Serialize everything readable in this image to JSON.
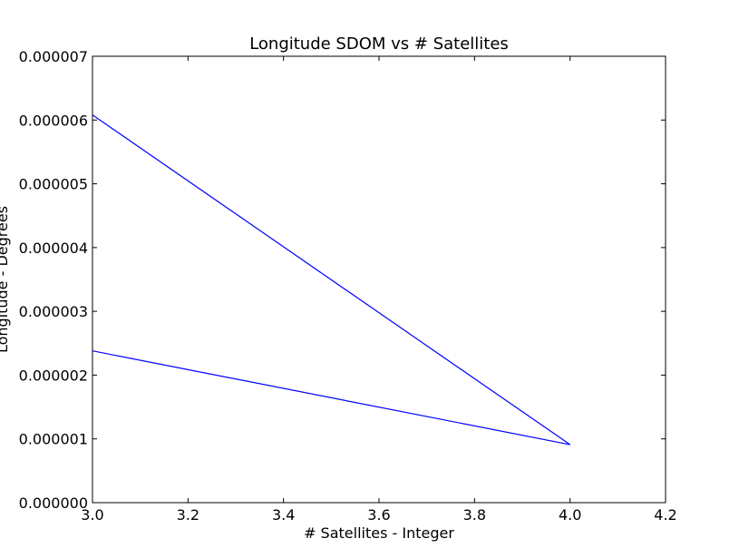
{
  "chart_data": {
    "type": "line",
    "title": "Longitude SDOM vs # Satellites",
    "xlabel": "# Satellites - Integer",
    "ylabel": "Longitude - Degrees",
    "xlim": [
      3.0,
      4.2
    ],
    "ylim": [
      0.0,
      7e-06
    ],
    "x_ticks": [
      "3.0",
      "3.2",
      "3.4",
      "3.6",
      "3.8",
      "4.0",
      "4.2"
    ],
    "y_ticks": [
      "0.000000",
      "0.000001",
      "0.000002",
      "0.000003",
      "0.000004",
      "0.000005",
      "0.000006",
      "0.000007"
    ],
    "grid": false,
    "series": [
      {
        "color": "#0000ff",
        "x": [
          3.0,
          4.0,
          3.0
        ],
        "y": [
          6.08e-06,
          9.1e-07,
          2.38e-06
        ]
      }
    ]
  }
}
